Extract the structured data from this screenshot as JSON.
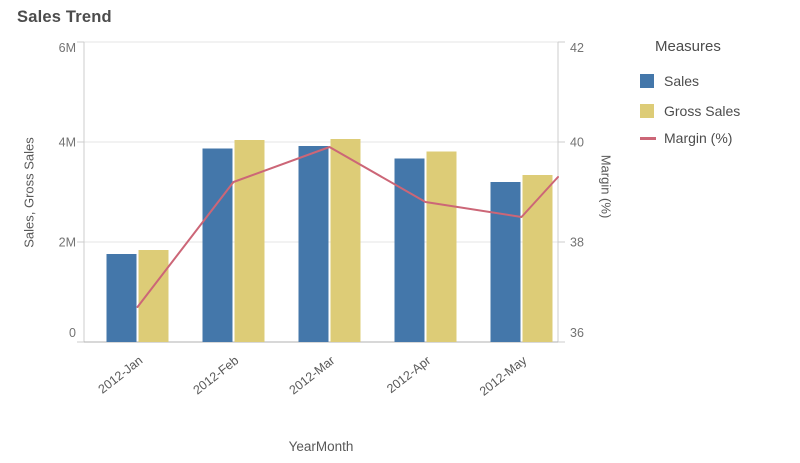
{
  "title": "Sales Trend",
  "legend": {
    "title": "Measures",
    "items": [
      {
        "label": "Sales",
        "color": "#4477aa",
        "swatch": "square"
      },
      {
        "label": "Gross Sales",
        "color": "#ddcc77",
        "swatch": "square"
      },
      {
        "label": "Margin (%)",
        "color": "#cc6677",
        "swatch": "line"
      }
    ]
  },
  "chart_data": {
    "type": "bar",
    "subtype": "combo-bar-line-dual-axis",
    "title": "Sales Trend",
    "categories": [
      "2012-Jan",
      "2012-Feb",
      "2012-Mar",
      "2012-Apr",
      "2012-May"
    ],
    "series": [
      {
        "name": "Sales",
        "type": "bar",
        "axis": "left",
        "color": "#4477aa",
        "values_millions": [
          1.76,
          3.87,
          3.92,
          3.67,
          3.2
        ]
      },
      {
        "name": "Gross Sales",
        "type": "bar",
        "axis": "left",
        "color": "#ddcc77",
        "values_millions": [
          1.84,
          4.04,
          4.06,
          3.81,
          3.34
        ]
      },
      {
        "name": "Margin (%)",
        "type": "line",
        "axis": "right",
        "color": "#cc6677",
        "values": [
          36.7,
          39.2,
          39.9,
          38.8,
          38.5
        ],
        "line_extends_to_right_edge": true,
        "edge_value": 39.3
      }
    ],
    "xlabel": "YearMonth",
    "ylabel_left": "Sales, Gross Sales",
    "ylabel_right": "Margin (%)",
    "ylim_left_millions": [
      0,
      6
    ],
    "ylim_right": [
      36,
      42
    ],
    "left_tick_labels": [
      "0",
      "2M",
      "4M",
      "6M"
    ],
    "left_tick_values_millions": [
      0,
      2,
      4,
      6
    ],
    "right_tick_labels": [
      "36",
      "38",
      "40",
      "42"
    ],
    "right_tick_values": [
      36,
      38,
      40,
      42
    ],
    "grid": true,
    "legend_position": "right",
    "colors": {
      "grid_line": "#e6e6e6",
      "axis_line": "#cccccc",
      "baseline": "#b0b0b0",
      "tick_text": "#737373",
      "category_text": "#595959"
    }
  }
}
